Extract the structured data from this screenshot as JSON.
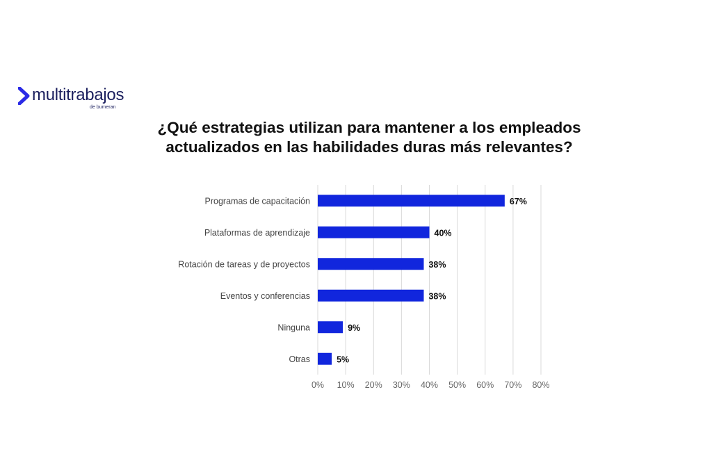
{
  "logo": {
    "name": "multitrabajos",
    "tagline": "de bumeran",
    "colors": {
      "mark": "#2a2ae6",
      "text": "#1b1f5e"
    }
  },
  "chart_data": {
    "type": "bar",
    "orientation": "horizontal",
    "title": [
      "¿Qué estrategias utilizan para mantener a los empleados",
      "actualizados en las habilidades duras más relevantes?"
    ],
    "categories": [
      "Programas de capacitación",
      "Plataformas de aprendizaje",
      "Rotación de tareas y de proyectos",
      "Eventos y conferencias",
      "Ninguna",
      "Otras"
    ],
    "values": [
      67,
      40,
      38,
      38,
      9,
      5
    ],
    "value_labels": [
      "67%",
      "40%",
      "38%",
      "38%",
      "9%",
      "5%"
    ],
    "xlim": [
      0,
      80
    ],
    "xticks": [
      0,
      10,
      20,
      30,
      40,
      50,
      60,
      70,
      80
    ],
    "xtick_labels": [
      "0%",
      "10%",
      "20%",
      "30%",
      "40%",
      "50%",
      "60%",
      "70%",
      "80%"
    ],
    "grid": true,
    "legend": "none",
    "bar_color": "#1126dd",
    "grid_color": "#d9d9d9"
  }
}
